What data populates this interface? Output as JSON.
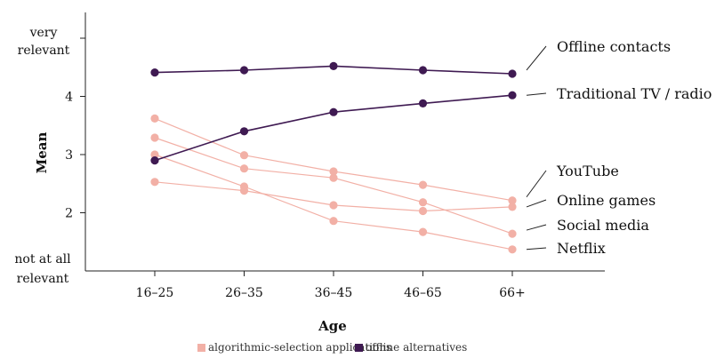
{
  "chart_data": {
    "type": "line",
    "xlabel": "Age",
    "ylabel": "Mean",
    "categories": [
      "16–25",
      "26–35",
      "36–45",
      "46–65",
      "66+"
    ],
    "ylim": [
      1,
      5
    ],
    "yticks": [
      {
        "value": 2,
        "label": "2"
      },
      {
        "value": 3,
        "label": "3"
      },
      {
        "value": 4,
        "label": "4"
      }
    ],
    "yanchors": {
      "top": [
        "very",
        "relevant"
      ],
      "bottom": [
        "not at all",
        "relevant"
      ]
    },
    "grid": false,
    "groups": [
      {
        "key": "algorithmic",
        "label": "algorithmic-selection applications",
        "color": "#f2b0a6"
      },
      {
        "key": "offline",
        "label": "offline alternatives",
        "color": "#3f1a52"
      }
    ],
    "series": [
      {
        "name": "Offline contacts",
        "group": "offline",
        "values": [
          4.41,
          4.45,
          4.52,
          4.45,
          4.39
        ]
      },
      {
        "name": "Traditional TV / radio",
        "group": "offline",
        "values": [
          2.9,
          3.4,
          3.73,
          3.88,
          4.02
        ]
      },
      {
        "name": "YouTube",
        "group": "algorithmic",
        "values": [
          3.62,
          2.99,
          2.71,
          2.48,
          2.21
        ]
      },
      {
        "name": "Online games",
        "group": "algorithmic",
        "values": [
          2.53,
          2.38,
          2.13,
          2.03,
          2.1
        ]
      },
      {
        "name": "Social media",
        "group": "algorithmic",
        "values": [
          3.29,
          2.76,
          2.6,
          2.18,
          1.64
        ]
      },
      {
        "name": "Netflix",
        "group": "algorithmic",
        "values": [
          3.0,
          2.45,
          1.86,
          1.67,
          1.37
        ]
      }
    ],
    "legend_position": "bottom"
  }
}
